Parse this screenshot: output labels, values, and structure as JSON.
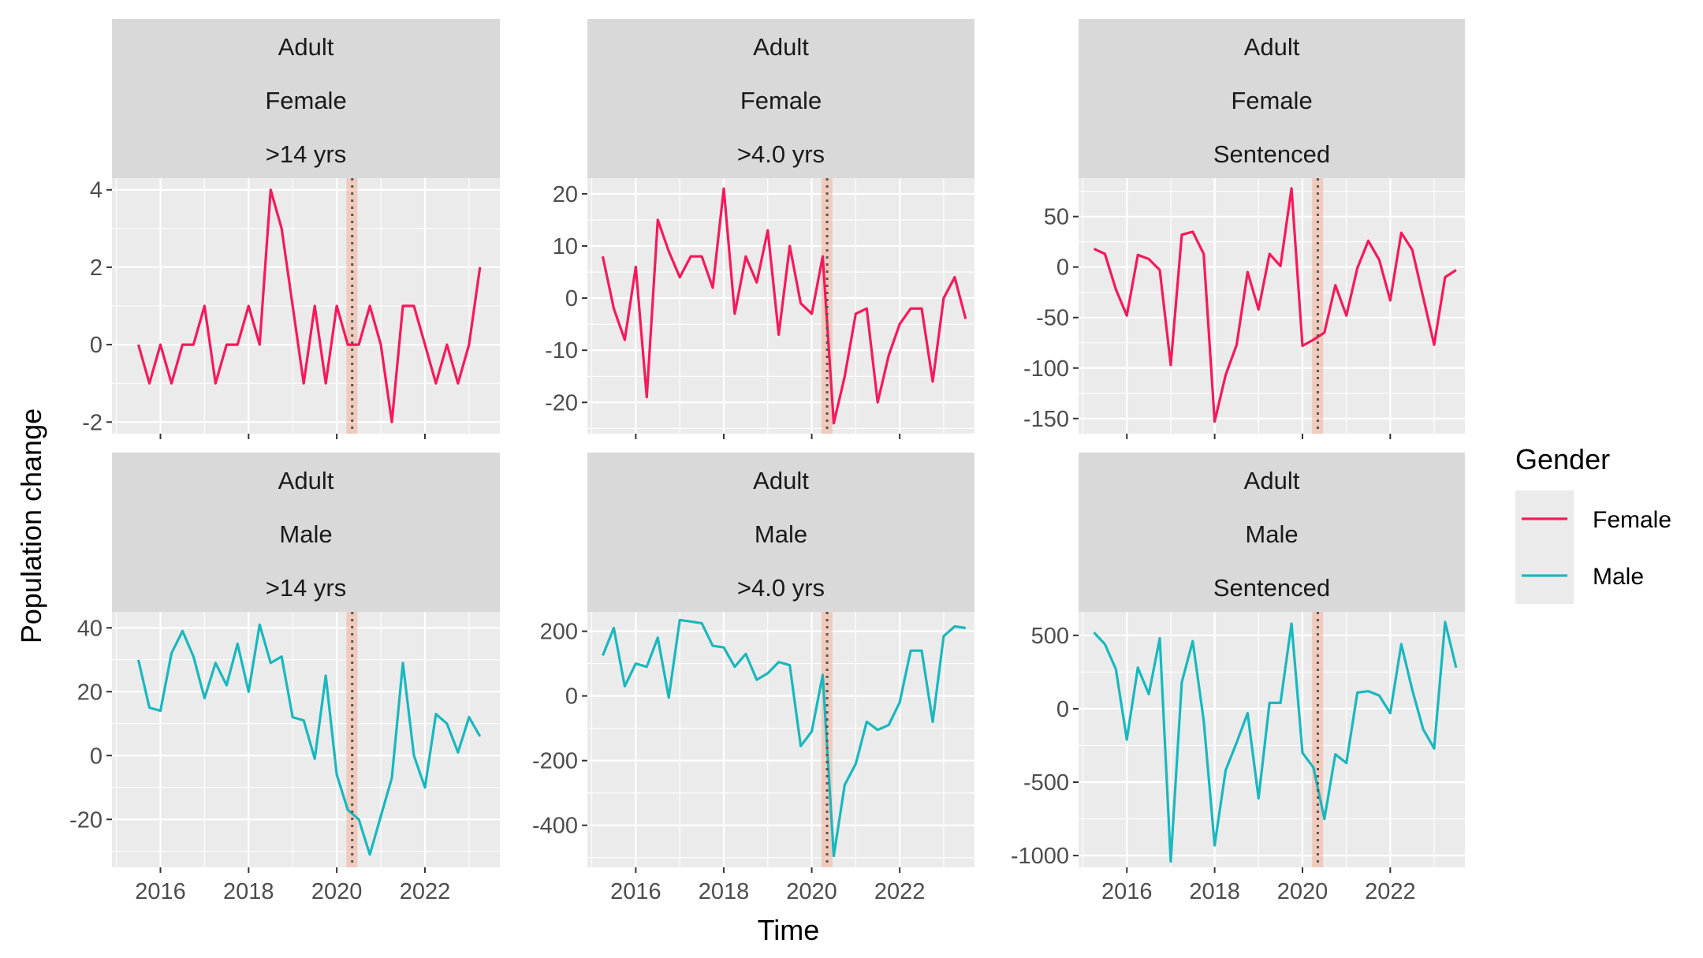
{
  "chart_data": {
    "type": "line",
    "xlabel": "Time",
    "ylabel": "Population change",
    "x_tick_labels": [
      "2016",
      "2018",
      "2020",
      "2022"
    ],
    "x_ticks": [
      2016,
      2018,
      2020,
      2022
    ],
    "event_band": [
      2020.22,
      2020.47
    ],
    "event_line": 2020.35,
    "event_band_color": "#f4a98f",
    "grid": true,
    "legend": {
      "title": "Gender",
      "placement": "right",
      "entries": [
        {
          "name": "Female",
          "color": "#f8185a"
        },
        {
          "name": "Male",
          "color": "#18b8be"
        }
      ]
    },
    "panels": [
      {
        "strip": [
          "Adult",
          "Female",
          ">14 yrs"
        ],
        "series": "Female",
        "xlim": [
          2014.9,
          2023.7
        ],
        "ylim": [
          -2.3,
          4.3
        ],
        "yticks": [
          -2,
          0,
          2,
          4
        ],
        "ytick_labels": [
          "-2",
          "0",
          "2",
          "4"
        ],
        "x": [
          2015.5,
          2015.75,
          2016.0,
          2016.25,
          2016.5,
          2016.75,
          2017.0,
          2017.25,
          2017.5,
          2017.75,
          2018.0,
          2018.25,
          2018.5,
          2018.75,
          2019.0,
          2019.25,
          2019.5,
          2019.75,
          2020.0,
          2020.25,
          2020.5,
          2020.75,
          2021.0,
          2021.25,
          2021.5,
          2021.75,
          2022.0,
          2022.25,
          2022.5,
          2022.75,
          2023.0,
          2023.25
        ],
        "y": [
          0,
          -1,
          0,
          -1,
          0,
          0,
          1,
          -1,
          0,
          0,
          1,
          0,
          4,
          3,
          1,
          -1,
          1,
          -1,
          1,
          0,
          0,
          1,
          0,
          -2,
          1,
          1,
          0,
          -1,
          0,
          -1,
          0,
          2
        ]
      },
      {
        "strip": [
          "Adult",
          "Female",
          ">4.0 yrs"
        ],
        "series": "Female",
        "xlim": [
          2014.9,
          2023.7
        ],
        "ylim": [
          -26,
          23
        ],
        "yticks": [
          -20,
          -10,
          0,
          10,
          20
        ],
        "ytick_labels": [
          "-20",
          "-10",
          "0",
          "10",
          "20"
        ],
        "x": [
          2015.25,
          2015.5,
          2015.75,
          2016.0,
          2016.25,
          2016.5,
          2016.75,
          2017.0,
          2017.25,
          2017.5,
          2017.75,
          2018.0,
          2018.25,
          2018.5,
          2018.75,
          2019.0,
          2019.25,
          2019.5,
          2019.75,
          2020.0,
          2020.25,
          2020.5,
          2020.75,
          2021.0,
          2021.25,
          2021.5,
          2021.75,
          2022.0,
          2022.25,
          2022.5,
          2022.75,
          2023.0,
          2023.25,
          2023.5
        ],
        "y": [
          8,
          -2,
          -8,
          6,
          -19,
          15,
          9,
          4,
          8,
          8,
          2,
          21,
          -3,
          8,
          3,
          13,
          -7,
          10,
          -1,
          -3,
          8,
          -24,
          -15,
          -3,
          -2,
          -20,
          -11,
          -5,
          -2,
          -2,
          -16,
          0,
          4,
          -4
        ]
      },
      {
        "strip": [
          "Adult",
          "Female",
          "Sentenced"
        ],
        "series": "Female",
        "xlim": [
          2014.9,
          2023.7
        ],
        "ylim": [
          -165,
          88
        ],
        "yticks": [
          -150,
          -100,
          -50,
          0,
          50
        ],
        "ytick_labels": [
          "-150",
          "-100",
          "-50",
          "0",
          "50"
        ],
        "x": [
          2015.25,
          2015.5,
          2015.75,
          2016.0,
          2016.25,
          2016.5,
          2016.75,
          2017.0,
          2017.25,
          2017.5,
          2017.75,
          2018.0,
          2018.25,
          2018.5,
          2018.75,
          2019.0,
          2019.25,
          2019.5,
          2019.75,
          2020.0,
          2020.25,
          2020.5,
          2020.75,
          2021.0,
          2021.25,
          2021.5,
          2021.75,
          2022.0,
          2022.25,
          2022.5,
          2022.75,
          2023.0,
          2023.25,
          2023.5
        ],
        "y": [
          18,
          13,
          -22,
          -48,
          12,
          8,
          -3,
          -97,
          32,
          35,
          13,
          -153,
          -107,
          -77,
          -5,
          -42,
          13,
          1,
          78,
          -78,
          -72,
          -65,
          -18,
          -48,
          -1,
          26,
          7,
          -33,
          34,
          17,
          -30,
          -77,
          -10,
          -3
        ]
      },
      {
        "strip": [
          "Adult",
          "Male",
          ">14 yrs"
        ],
        "series": "Male",
        "xlim": [
          2014.9,
          2023.7
        ],
        "ylim": [
          -35,
          45
        ],
        "yticks": [
          -20,
          0,
          20,
          40
        ],
        "ytick_labels": [
          "-20",
          "0",
          "20",
          "40"
        ],
        "x": [
          2015.5,
          2015.75,
          2016.0,
          2016.25,
          2016.5,
          2016.75,
          2017.0,
          2017.25,
          2017.5,
          2017.75,
          2018.0,
          2018.25,
          2018.5,
          2018.75,
          2019.0,
          2019.25,
          2019.5,
          2019.75,
          2020.0,
          2020.25,
          2020.5,
          2020.75,
          2021.0,
          2021.25,
          2021.5,
          2021.75,
          2022.0,
          2022.25,
          2022.5,
          2022.75,
          2023.0,
          2023.25
        ],
        "y": [
          30,
          15,
          14,
          32,
          39,
          31,
          18,
          29,
          22,
          35,
          20,
          41,
          29,
          31,
          12,
          11,
          -1,
          25,
          -6,
          -17,
          -20,
          -31,
          -19,
          -7,
          29,
          0,
          -10,
          13,
          10,
          1,
          12,
          6
        ]
      },
      {
        "strip": [
          "Adult",
          "Male",
          ">4.0 yrs"
        ],
        "series": "Male",
        "xlim": [
          2014.9,
          2023.7
        ],
        "ylim": [
          -530,
          260
        ],
        "yticks": [
          -400,
          -200,
          0,
          200
        ],
        "ytick_labels": [
          "-400",
          "-200",
          "0",
          "200"
        ],
        "x": [
          2015.25,
          2015.5,
          2015.75,
          2016.0,
          2016.25,
          2016.5,
          2016.75,
          2017.0,
          2017.25,
          2017.5,
          2017.75,
          2018.0,
          2018.25,
          2018.5,
          2018.75,
          2019.0,
          2019.25,
          2019.5,
          2019.75,
          2020.0,
          2020.25,
          2020.5,
          2020.75,
          2021.0,
          2021.25,
          2021.5,
          2021.75,
          2022.0,
          2022.25,
          2022.5,
          2022.75,
          2023.0,
          2023.25,
          2023.5
        ],
        "y": [
          125,
          210,
          30,
          100,
          90,
          180,
          -5,
          235,
          230,
          225,
          155,
          150,
          90,
          130,
          50,
          70,
          105,
          95,
          -155,
          -110,
          65,
          -495,
          -275,
          -210,
          -80,
          -105,
          -90,
          -20,
          140,
          140,
          -80,
          185,
          215,
          210
        ]
      },
      {
        "strip": [
          "Adult",
          "Male",
          "Sentenced"
        ],
        "series": "Male",
        "xlim": [
          2014.9,
          2023.7
        ],
        "ylim": [
          -1080,
          660
        ],
        "yticks": [
          -1000,
          -500,
          0,
          500
        ],
        "ytick_labels": [
          "-1000",
          "-500",
          "0",
          "500"
        ],
        "x": [
          2015.25,
          2015.5,
          2015.75,
          2016.0,
          2016.25,
          2016.5,
          2016.75,
          2017.0,
          2017.25,
          2017.5,
          2017.75,
          2018.0,
          2018.25,
          2018.5,
          2018.75,
          2019.0,
          2019.25,
          2019.5,
          2019.75,
          2020.0,
          2020.25,
          2020.5,
          2020.75,
          2021.0,
          2021.25,
          2021.5,
          2021.75,
          2022.0,
          2022.25,
          2022.5,
          2022.75,
          2023.0,
          2023.25,
          2023.5
        ],
        "y": [
          520,
          440,
          270,
          -210,
          280,
          100,
          480,
          -1040,
          180,
          460,
          -80,
          -930,
          -420,
          -230,
          -30,
          -610,
          40,
          40,
          580,
          -300,
          -400,
          -750,
          -310,
          -370,
          110,
          120,
          90,
          -30,
          440,
          130,
          -140,
          -270,
          590,
          280
        ]
      }
    ]
  }
}
